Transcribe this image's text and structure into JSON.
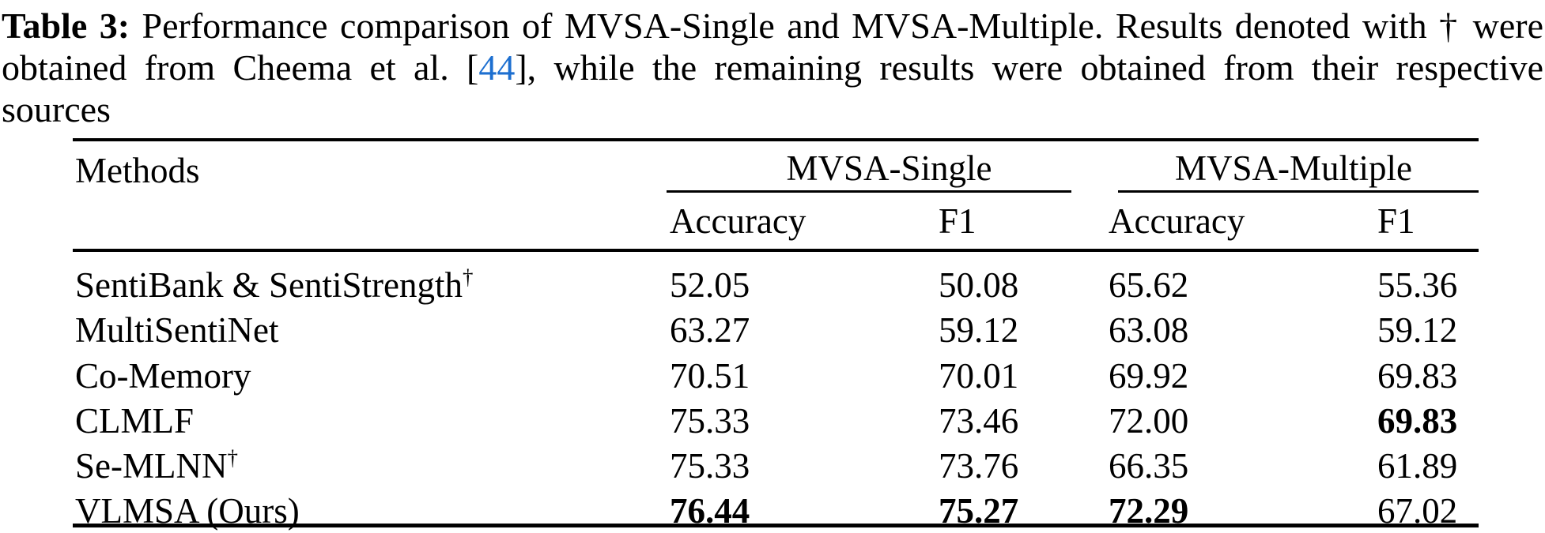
{
  "caption": {
    "label": "Table 3:",
    "line1_rest": " Performance comparison of MVSA-Single and MVSA-Multiple. Results denoted with † were",
    "line2_pre": "obtained from Cheema et al. [",
    "line2_link": "44",
    "line2_post": "], while the remaining results were obtained from their respective",
    "line3": "sources",
    "link_color": "#1d6fd0"
  },
  "table": {
    "methods_header": "Methods",
    "groups": [
      "MVSA-Single",
      "MVSA-Multiple"
    ],
    "subheaders": [
      "Accuracy",
      "F1",
      "Accuracy",
      "F1"
    ],
    "rows": [
      {
        "method": "SentiBank & SentiStrength",
        "sup": "†",
        "values": [
          "52.05",
          "50.08",
          "65.62",
          "55.36"
        ],
        "bold": [
          false,
          false,
          false,
          false
        ]
      },
      {
        "method": "MultiSentiNet",
        "values": [
          "63.27",
          "59.12",
          "63.08",
          "59.12"
        ],
        "bold": [
          false,
          false,
          false,
          false
        ]
      },
      {
        "method": "Co-Memory",
        "values": [
          "70.51",
          "70.01",
          "69.92",
          "69.83"
        ],
        "bold": [
          false,
          false,
          false,
          false
        ]
      },
      {
        "method": "CLMLF",
        "values": [
          "75.33",
          "73.46",
          "72.00",
          "69.83"
        ],
        "bold": [
          false,
          false,
          false,
          true
        ]
      },
      {
        "method": "Se-MLNN",
        "sup": "†",
        "values": [
          "75.33",
          "73.76",
          "66.35",
          "61.89"
        ],
        "bold": [
          false,
          false,
          false,
          false
        ]
      },
      {
        "method": "VLMSA (Ours)",
        "values": [
          "76.44",
          "75.27",
          "72.29",
          "67.02"
        ],
        "bold": [
          true,
          true,
          true,
          false
        ]
      }
    ]
  }
}
